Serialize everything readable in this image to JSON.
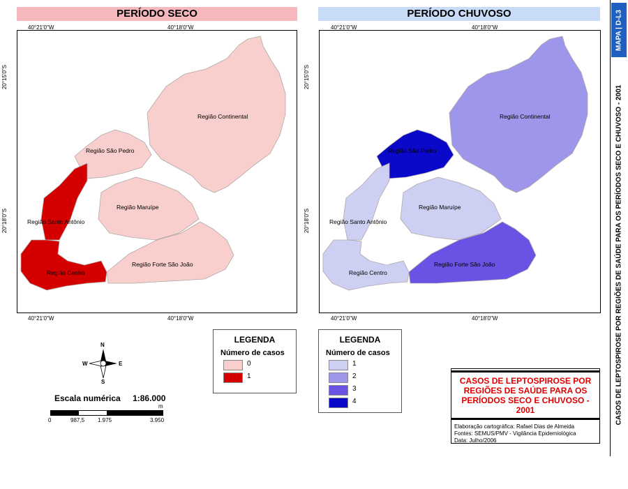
{
  "panels": {
    "left_title": "PERÍODO SECO",
    "right_title": "PERÍODO CHUVOSO",
    "left_title_color": "#f4b8bd",
    "right_title_color": "#c8dcf8"
  },
  "coords": {
    "lon1": "40°21'0\"W",
    "lon2": "40°18'0\"W",
    "lat1": "20°15'0\"S",
    "lat2": "20°18'0\"S"
  },
  "regions": {
    "continental": "Região Continental",
    "sao_pedro": "Região São Pedro",
    "santo_antonio": "Região Santo Antônio",
    "maruipe": "Região Maruípe",
    "centro": "Região Centro",
    "forte": "Região Forte São João"
  },
  "map_dry": {
    "continental": 0,
    "sao_pedro": 0,
    "santo_antonio": 1,
    "maruipe": 0,
    "centro": 1,
    "forte": 0
  },
  "map_wet": {
    "continental": 2,
    "sao_pedro": 4,
    "santo_antonio": 1,
    "maruipe": 1,
    "centro": 1,
    "forte": 3
  },
  "colors": {
    "dry_0": "#f8cfcc",
    "dry_1": "#d40000",
    "wet_1": "#cdd0f3",
    "wet_2": "#9d96ea",
    "wet_3": "#6a53e4",
    "wet_4": "#0a08c9",
    "water": "#ffffff",
    "border": "#b0a8a8"
  },
  "legend_dry": {
    "title": "LEGENDA",
    "subtitle": "Número de casos",
    "items": [
      {
        "label": "0",
        "color": "#f8cfcc"
      },
      {
        "label": "1",
        "color": "#d40000"
      }
    ]
  },
  "legend_wet": {
    "title": "LEGENDA",
    "subtitle": "Número de casos",
    "items": [
      {
        "label": "1",
        "color": "#cdd0f3"
      },
      {
        "label": "2",
        "color": "#9d96ea"
      },
      {
        "label": "3",
        "color": "#6a53e4"
      },
      {
        "label": "4",
        "color": "#0a08c9"
      }
    ]
  },
  "compass": {
    "n": "N",
    "s": "S",
    "e": "E",
    "w": "W"
  },
  "scale": {
    "label": "Escala numérica",
    "value": "1:86.000",
    "unit": "m",
    "ticks": [
      "0",
      "987,5",
      "1.975",
      "3.950"
    ]
  },
  "title_box": {
    "title": "CASOS DE LEPTOSPIROSE POR REGIÕES DE SAÚDE PARA OS PERÍODOS SECO E CHUVOSO - 2001",
    "credit1": "Elaboração cartográfica: Rafael Dias de Almeida",
    "credit2": "Fontes: SEMUS/PMV - Vigilância Epidemiológica",
    "credit3": "Data: Julho/2006"
  },
  "side": {
    "map_id": "MAPA | D-L3",
    "vertical_title": "CASOS DE LEPTOSPIROSE POR REGIÕES DE SAÚDE PARA OS PERÍODOS SECO E CHUVOSO - 2001"
  }
}
